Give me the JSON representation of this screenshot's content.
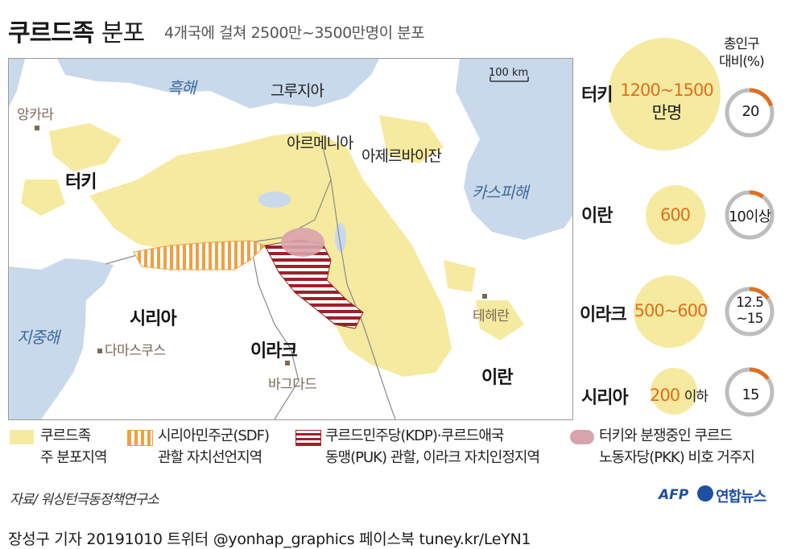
{
  "title": {
    "main_bold": "쿠르드족",
    "main_light": "분포",
    "subtitle": "4개국에 걸쳐 2500만~3500만명이 분포"
  },
  "map": {
    "scale": "100 km",
    "seas": {
      "black_sea": "흑해",
      "caspian": "카스피해",
      "mediterranean": "지중해"
    },
    "countries": {
      "georgia": "그루지아",
      "armenia": "아르메니아",
      "azerbaijan": "아제르바이잔",
      "turkey": "터키",
      "syria": "시리아",
      "iraq": "이라크",
      "iran": "이란"
    },
    "cities": {
      "ankara": "앙카라",
      "damascus": "다마스쿠스",
      "baghdad": "바그다드",
      "tehran": "테헤란"
    }
  },
  "legend": [
    {
      "line1": "쿠르드족",
      "line2": "주 분포지역",
      "color": "#f5eaa0"
    },
    {
      "line1": "시리아민주군(SDF)",
      "line2": "관할 자치선언지역",
      "color": "#f0a040"
    },
    {
      "line1": "쿠르드민주당(KDP)·쿠르드애국",
      "line2": "동맹(PUK) 관할, 이라크 자치인정지역",
      "color": "#a01f28"
    },
    {
      "line1": "터키와 분쟁중인 쿠르드",
      "line2": "노동자당(PKK) 비호 거주지",
      "color": "#d9a3ab"
    }
  ],
  "ratio_header": {
    "line1": "총인구",
    "line2": "대비(%)"
  },
  "populations": [
    {
      "country": "터키",
      "value_line1": "1200~1500",
      "value_line2": "만명",
      "ratio": "20",
      "ratio_fraction": 0.2
    },
    {
      "country": "이란",
      "value_line1": "600",
      "value_line2": "",
      "ratio": "10이상",
      "ratio_fraction": 0.1
    },
    {
      "country": "이라크",
      "value_line1": "500~600",
      "value_line2": "",
      "ratio": "12.5\n~15",
      "ratio_fraction": 0.15
    },
    {
      "country": "시리아",
      "value_line1": "200",
      "value_line2": "이하",
      "ratio": "15",
      "ratio_fraction": 0.15
    }
  ],
  "source": "자료/ 워싱턴극동정책연구소",
  "logos": {
    "afp": "AFP",
    "yonhap": "연합뉴스"
  },
  "footer": "장성구 기자  20191010  트위터 @yonhap_graphics  페이스북 tuney.kr/LeYN1",
  "colors": {
    "kurd_area": "#f5eaa0",
    "sea": "#c9d9ec",
    "accent": "#e0701c",
    "ring": "#bdbdbd"
  }
}
